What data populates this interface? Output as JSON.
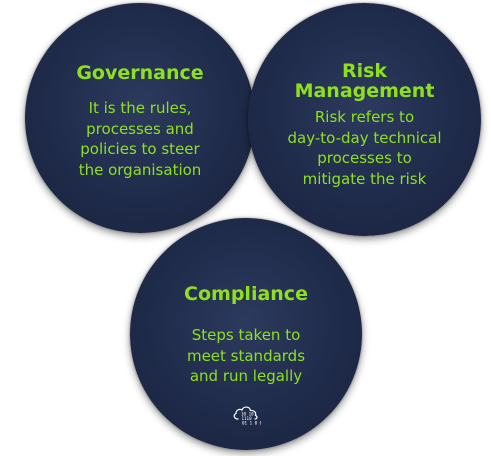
{
  "nodes": [
    {
      "title": "Governance",
      "description": "It is the rules,\nprocesses and\npolicies to steer\nthe organisation"
    },
    {
      "title": "Risk\nManagement",
      "description": "Risk refers to\nday-to-day technical\nprocesses to\nmitigate the risk"
    },
    {
      "title": "Compliance",
      "description": "Steps taken to\nmeet standards\nand run legally"
    }
  ],
  "colors": {
    "circle": "#1f2b4a",
    "text": "#8fe01c",
    "background": "#ffffff",
    "icon": "#ffffff"
  },
  "logo": {
    "icon": "cloud-binary-icon",
    "text": "10 10 1110 01 1 0 01"
  }
}
